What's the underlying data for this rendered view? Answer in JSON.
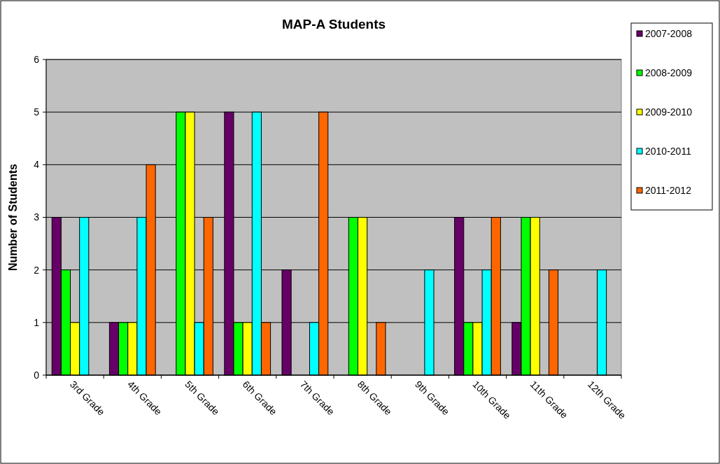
{
  "chart_data": {
    "type": "bar",
    "title": "MAP-A Students",
    "ylabel": "Number of Students",
    "categories": [
      "3rd Grade",
      "4th Grade",
      "5th Grade",
      "6th Grade",
      "7th Grade",
      "8th Grade",
      "9th Grade",
      "10th Grade",
      "11th Grade",
      "12th Grade"
    ],
    "series": [
      {
        "name": "2007-2008",
        "color": "#660066",
        "values": [
          3,
          1,
          0,
          5,
          2,
          0,
          0,
          3,
          1,
          0
        ]
      },
      {
        "name": "2008-2009",
        "color": "#00ff00",
        "values": [
          2,
          1,
          5,
          1,
          0,
          3,
          0,
          1,
          3,
          0
        ]
      },
      {
        "name": "2009-2010",
        "color": "#ffff00",
        "values": [
          1,
          1,
          5,
          1,
          0,
          3,
          0,
          1,
          3,
          0
        ]
      },
      {
        "name": "2010-2011",
        "color": "#00ffff",
        "values": [
          3,
          3,
          1,
          5,
          1,
          0,
          2,
          2,
          0,
          2
        ]
      },
      {
        "name": "2011-2012",
        "color": "#ff6600",
        "values": [
          0,
          4,
          3,
          1,
          5,
          1,
          0,
          3,
          2,
          0
        ]
      }
    ],
    "ylim": [
      0,
      6
    ],
    "yticks": [
      0,
      1,
      2,
      3,
      4,
      5,
      6
    ],
    "grid": "y",
    "legend": "right"
  }
}
